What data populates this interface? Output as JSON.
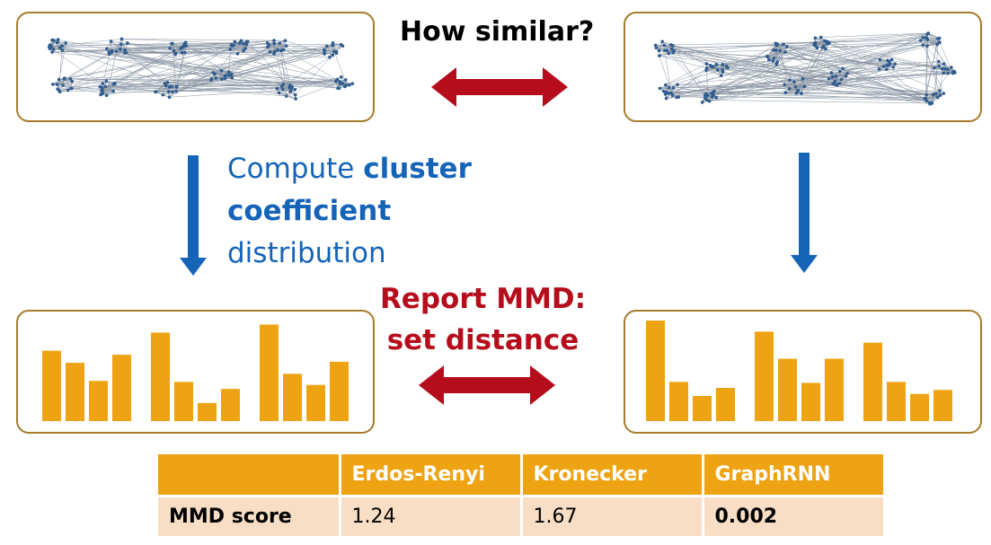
{
  "title": "How similar?",
  "compute": {
    "prefix": "Compute ",
    "bold1": "cluster",
    "bold2": "coefficient",
    "suffix": "distribution"
  },
  "report": {
    "line1": "Report MMD:",
    "line2": "set distance"
  },
  "colors": {
    "box_border": "#a57c2c",
    "bar": "#eea313",
    "blue_arrow": "#1564b8",
    "red_arrow": "#b50d1b",
    "node": "#2f5c8f",
    "table_header": "#eea313",
    "table_row": "#f8dec4"
  },
  "histograms": {
    "left": [
      [
        0.7,
        0.58,
        0.4,
        0.66
      ],
      [
        0.88,
        0.39,
        0.18,
        0.32
      ],
      [
        0.96,
        0.47,
        0.36,
        0.59
      ]
    ],
    "right": [
      [
        1.0,
        0.39,
        0.25,
        0.33
      ],
      [
        0.89,
        0.62,
        0.38,
        0.62
      ],
      [
        0.78,
        0.39,
        0.27,
        0.31
      ]
    ]
  },
  "table": {
    "headers": [
      "",
      "Erdos-Renyi",
      "Kronecker",
      "GraphRNN"
    ],
    "row_label": "MMD score",
    "values": [
      "1.24",
      "1.67",
      "0.002"
    ]
  }
}
